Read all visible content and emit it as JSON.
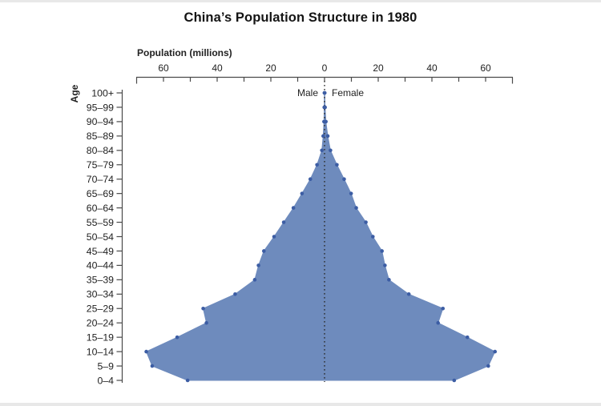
{
  "title": "China’s Population Structure in 1980",
  "chart_data": {
    "type": "area",
    "subtype": "population-pyramid",
    "title": "China’s Population Structure in 1980",
    "xlabel": "Population (millions)",
    "ylabel": "Age",
    "legend": {
      "left": "Male",
      "right": "Female"
    },
    "x_axis": {
      "labeled_ticks": [
        60,
        40,
        20,
        0,
        20,
        40,
        60
      ],
      "minor_tick_step": 10,
      "max_each_side": 70,
      "grid": false
    },
    "age_groups": [
      "100+",
      "95–99",
      "90–94",
      "85–89",
      "80–84",
      "75–79",
      "70–74",
      "65–69",
      "60–64",
      "55–59",
      "50–54",
      "45–49",
      "40–44",
      "35–39",
      "30–34",
      "25–29",
      "20–24",
      "15–19",
      "10–14",
      "5–9",
      "0–4"
    ],
    "series": [
      {
        "name": "Male",
        "side": "left",
        "values": [
          0.05,
          0.1,
          0.2,
          0.5,
          1.0,
          2.8,
          5.3,
          8.4,
          11.6,
          15.2,
          18.8,
          22.6,
          24.6,
          26.0,
          33.3,
          45.2,
          44.0,
          54.9,
          66.4,
          64.2,
          51.0
        ]
      },
      {
        "name": "Female",
        "side": "right",
        "values": [
          0.08,
          0.2,
          0.5,
          1.2,
          2.2,
          4.6,
          7.3,
          9.9,
          11.8,
          15.4,
          18.0,
          21.4,
          22.5,
          24.0,
          31.4,
          44.1,
          42.3,
          53.2,
          63.5,
          61.0,
          48.3
        ]
      }
    ],
    "colors": {
      "area_fill": "#6E8BBD",
      "point_dot": "#3C5DA4",
      "axis": "#4a4a4a",
      "text": "#222222",
      "center_line": "#2b2b2b",
      "title_text": "#141414"
    }
  }
}
